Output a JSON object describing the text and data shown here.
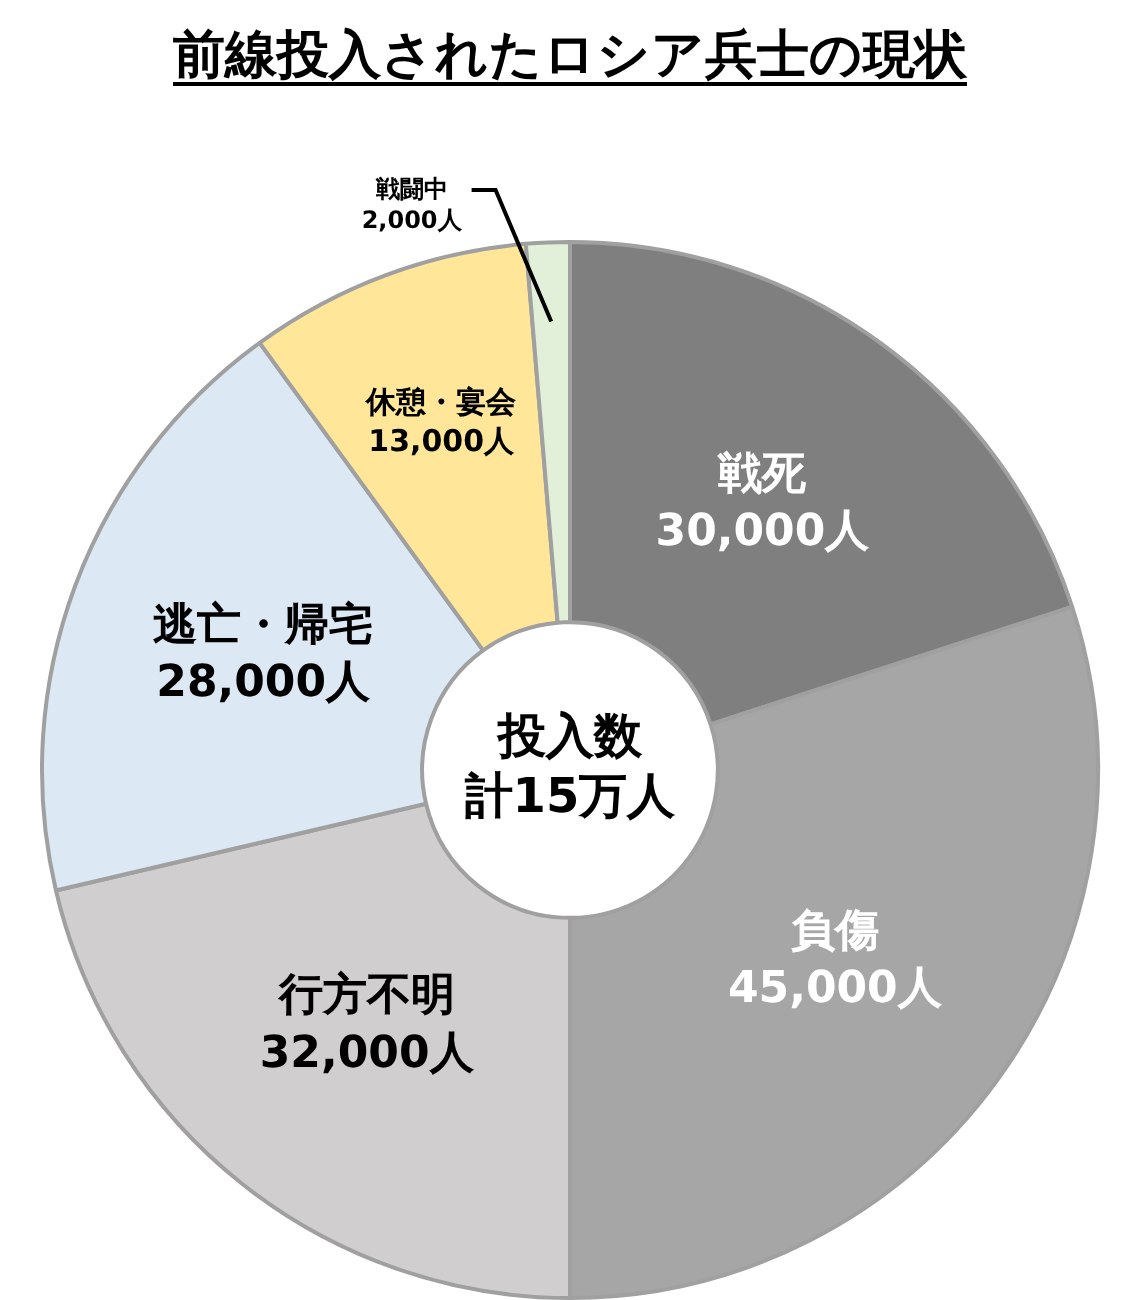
{
  "chart_data": {
    "type": "donut",
    "title": "前線投入されたロシア兵士の現状",
    "categories": [
      "戦死",
      "負傷",
      "行方不明",
      "逃亡・帰宅",
      "休憩・宴会",
      "戦闘中"
    ],
    "values": [
      30000,
      45000,
      32000,
      28000,
      13000,
      2000
    ],
    "value_labels": [
      "30,000人",
      "45,000人",
      "32,000人",
      "28,000人",
      "13,000人",
      "2,000人"
    ],
    "colors": [
      "#7f7f7f",
      "#a6a6a6",
      "#d0cece",
      "#dde8f5",
      "#ffe699",
      "#e2f0d9"
    ],
    "annotations": [
      "投入数",
      "計15万人"
    ],
    "legend": false
  }
}
